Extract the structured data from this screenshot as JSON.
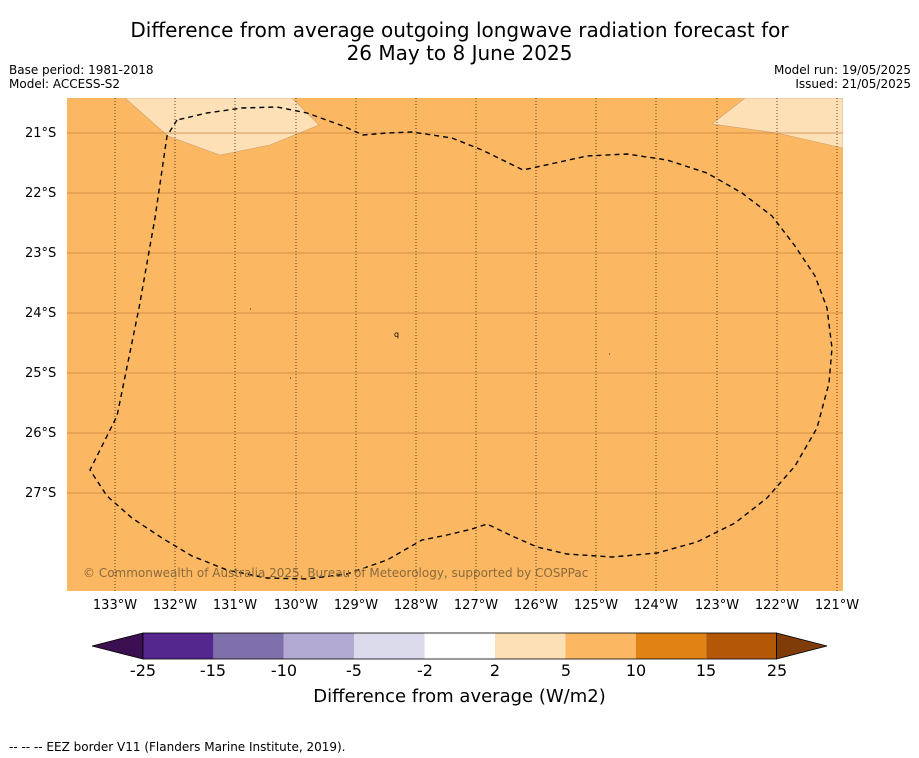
{
  "title": {
    "line1": "Difference from average outgoing longwave radiation forecast for",
    "line2": "26 May to 8 June 2025"
  },
  "meta_left": {
    "base_period": "Base period: 1981-2018",
    "model": "Model: ACCESS-S2"
  },
  "meta_right": {
    "model_run": "Model run: 19/05/2025",
    "issued": "Issued: 21/05/2025"
  },
  "map": {
    "copyright": "© Commonwealth of Australia 2025, Bureau of Meteorology, supported by COSPPac",
    "background_color": "#fbb762",
    "lat_labels": [
      "21°S",
      "22°S",
      "23°S",
      "24°S",
      "25°S",
      "26°S",
      "27°S"
    ],
    "lon_labels": [
      "133°W",
      "132°W",
      "131°W",
      "130°W",
      "129°W",
      "128°W",
      "127°W",
      "126°W",
      "125°W",
      "124°W",
      "123°W",
      "122°W",
      "121°W"
    ],
    "island_label": "q"
  },
  "colorbar": {
    "ticks": [
      "-25",
      "-15",
      "-10",
      "-5",
      "-2",
      "2",
      "5",
      "10",
      "15",
      "25"
    ],
    "colors": [
      "#3b0f52",
      "#54278f",
      "#7e71ab",
      "#b2aad2",
      "#dadaeb",
      "#ffffff",
      "#fee0b6",
      "#fbb762",
      "#e08214",
      "#b35806",
      "#7f3b08"
    ],
    "label": "Difference from average (W/m2)"
  },
  "footnote": "--  --  -- EEZ border V11 (Flanders Marine Institute, 2019)."
}
